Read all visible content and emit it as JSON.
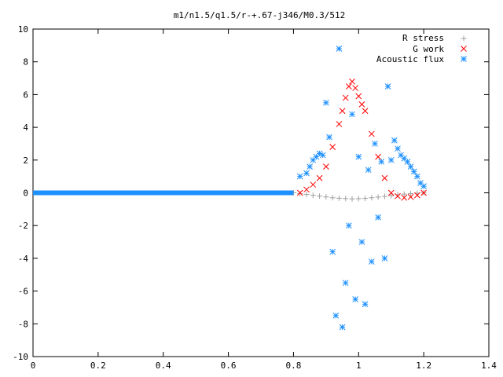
{
  "chart_data": {
    "type": "scatter",
    "title": "m1/n1.5/q1.5/r-+.67-j346/M0.3/512",
    "xlabel": "",
    "ylabel": "",
    "xlim": [
      0,
      1.4
    ],
    "ylim": [
      -10,
      10
    ],
    "x_ticks": [
      "0",
      "0.2",
      "0.4",
      "0.6",
      "0.8",
      "1",
      "1.2",
      "1.4"
    ],
    "y_ticks": [
      "10",
      "8",
      "6",
      "4",
      "2",
      "0",
      "-2",
      "-4",
      "-6",
      "-8",
      "-10"
    ],
    "legend_position": "top-right",
    "series": [
      {
        "name": "R stress",
        "marker": "+",
        "color": "#a0a0a0",
        "x": [
          0.8,
          0.82,
          0.84,
          0.86,
          0.88,
          0.9,
          0.92,
          0.94,
          0.96,
          0.98,
          1.0,
          1.02,
          1.04,
          1.06,
          1.08,
          1.1,
          1.12,
          1.14,
          1.16,
          1.18,
          1.2
        ],
        "y": [
          0.0,
          -0.05,
          -0.1,
          -0.15,
          -0.2,
          -0.25,
          -0.3,
          -0.33,
          -0.35,
          -0.37,
          -0.36,
          -0.34,
          -0.3,
          -0.26,
          -0.22,
          -0.17,
          -0.12,
          -0.08,
          -0.05,
          -0.02,
          0.0
        ]
      },
      {
        "name": "G work",
        "marker": "x",
        "color": "#ff0000",
        "x": [
          0.82,
          0.84,
          0.86,
          0.88,
          0.9,
          0.92,
          0.94,
          0.95,
          0.96,
          0.97,
          0.98,
          0.99,
          1.0,
          1.01,
          1.02,
          1.04,
          1.06,
          1.08,
          1.1,
          1.12,
          1.14,
          1.16,
          1.18,
          1.2
        ],
        "y": [
          0.0,
          0.2,
          0.5,
          0.9,
          1.6,
          2.8,
          4.2,
          5.0,
          5.8,
          6.5,
          6.8,
          6.4,
          5.9,
          5.4,
          5.0,
          3.6,
          2.2,
          0.9,
          0.0,
          -0.2,
          -0.3,
          -0.25,
          -0.15,
          0.0
        ]
      },
      {
        "name": "Acoustic flux",
        "marker": "*",
        "color": "#1e90ff",
        "baseline": {
          "x_start": 0.0,
          "x_end": 0.8,
          "y": 0.0
        },
        "x": [
          0.82,
          0.84,
          0.85,
          0.86,
          0.87,
          0.88,
          0.89,
          0.9,
          0.91,
          0.92,
          0.93,
          0.94,
          0.95,
          0.96,
          0.97,
          0.98,
          0.99,
          1.0,
          1.01,
          1.02,
          1.03,
          1.04,
          1.05,
          1.06,
          1.07,
          1.08,
          1.09,
          1.1,
          1.11,
          1.12,
          1.13,
          1.14,
          1.15,
          1.16,
          1.17,
          1.18,
          1.19,
          1.2
        ],
        "y": [
          1.0,
          1.2,
          1.6,
          2.0,
          2.2,
          2.4,
          2.3,
          5.5,
          3.4,
          -3.6,
          -7.5,
          8.8,
          -8.2,
          -5.5,
          -2.0,
          4.8,
          -6.5,
          2.2,
          -3.0,
          -6.8,
          1.4,
          -4.2,
          3.0,
          -1.5,
          1.9,
          -4.0,
          6.5,
          2.0,
          3.2,
          2.7,
          2.3,
          2.1,
          1.9,
          1.6,
          1.3,
          1.0,
          0.6,
          0.4
        ]
      }
    ]
  }
}
